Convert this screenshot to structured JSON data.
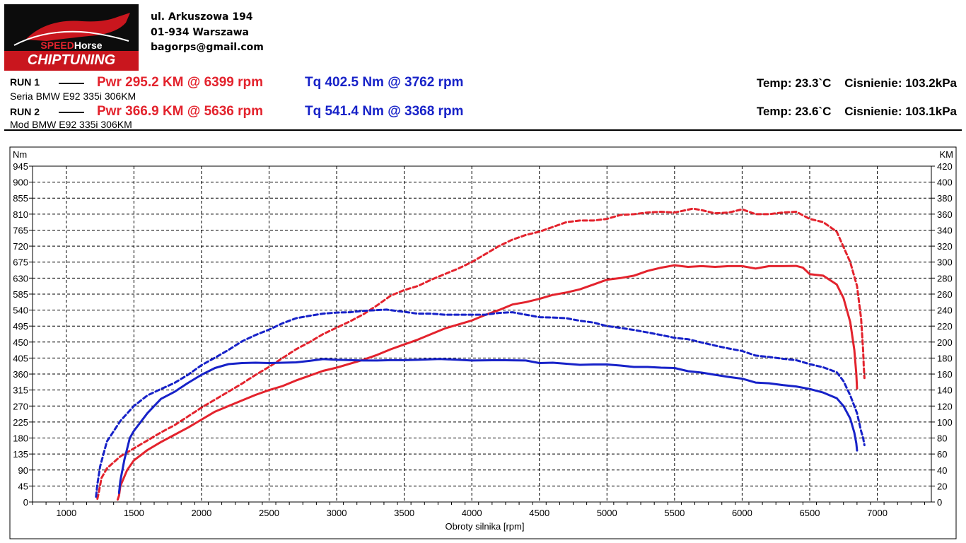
{
  "brand": {
    "logo_word_1": "SPEED",
    "logo_word_2": "Horse",
    "logo_sub": "CHIPTUNING"
  },
  "address": {
    "street": "ul. Arkuszowa 194",
    "city": "01-934 Warszawa",
    "email": "bagorps@gmail.com"
  },
  "runs": [
    {
      "label": "RUN 1",
      "pwr": "Pwr  295.2 KM @ 6399 rpm",
      "tq": "Tq 402.5 Nm @ 3762 rpm",
      "desc": "Seria BMW E92 335i 306KM",
      "env": "Temp: 23.3`C    Cisnienie: 103.2kPa"
    },
    {
      "label": "RUN 2",
      "pwr": "Pwr  366.9 KM @ 5636 rpm",
      "tq": "Tq 541.4 Nm @ 3368 rpm",
      "desc": "Mod BMW E92 335i 306KM",
      "env": "Temp: 23.6`C    Cisnienie: 103.1kPa"
    }
  ],
  "colors": {
    "power": "#e3232d",
    "torque": "#1722c8",
    "grid": "#000000"
  },
  "chart_data": {
    "type": "line",
    "title": "",
    "xlabel": "Obroty silnika [rpm]",
    "ylabel_left": "Nm",
    "ylabel_right": "KM",
    "xlim": [
      750,
      7400
    ],
    "ylim_left": [
      0,
      945
    ],
    "ylim_right": [
      0,
      420
    ],
    "x_ticks": [
      1000,
      1500,
      2000,
      2500,
      3000,
      3500,
      4000,
      4500,
      5000,
      5500,
      6000,
      6500,
      7000
    ],
    "y_ticks_left": [
      0,
      45,
      90,
      135,
      180,
      225,
      270,
      315,
      360,
      405,
      450,
      495,
      540,
      585,
      630,
      675,
      720,
      765,
      810,
      855,
      900,
      945
    ],
    "y_ticks_right": [
      0,
      20,
      40,
      60,
      80,
      100,
      120,
      140,
      160,
      180,
      200,
      220,
      240,
      260,
      280,
      300,
      320,
      340,
      360,
      380,
      400,
      420
    ],
    "grid": true,
    "series": [
      {
        "run": "RUN 1",
        "kind": "power",
        "axis": "right",
        "style": "solid",
        "points": [
          [
            1380,
            3
          ],
          [
            1390,
            8
          ],
          [
            1400,
            20
          ],
          [
            1450,
            40
          ],
          [
            1500,
            52
          ],
          [
            1600,
            65
          ],
          [
            1700,
            75
          ],
          [
            1800,
            84
          ],
          [
            1900,
            93
          ],
          [
            2000,
            103
          ],
          [
            2100,
            113
          ],
          [
            2200,
            120
          ],
          [
            2300,
            127
          ],
          [
            2400,
            134
          ],
          [
            2500,
            140
          ],
          [
            2600,
            145
          ],
          [
            2700,
            152
          ],
          [
            2800,
            158
          ],
          [
            2900,
            164
          ],
          [
            3000,
            168
          ],
          [
            3100,
            173
          ],
          [
            3200,
            178
          ],
          [
            3300,
            184
          ],
          [
            3400,
            191
          ],
          [
            3500,
            197
          ],
          [
            3600,
            203
          ],
          [
            3700,
            210
          ],
          [
            3800,
            217
          ],
          [
            3900,
            222
          ],
          [
            4000,
            227
          ],
          [
            4100,
            234
          ],
          [
            4200,
            240
          ],
          [
            4300,
            247
          ],
          [
            4400,
            250
          ],
          [
            4500,
            254
          ],
          [
            4600,
            259
          ],
          [
            4700,
            262
          ],
          [
            4800,
            266
          ],
          [
            4900,
            272
          ],
          [
            5000,
            278
          ],
          [
            5100,
            280
          ],
          [
            5200,
            283
          ],
          [
            5300,
            289
          ],
          [
            5400,
            293
          ],
          [
            5500,
            296
          ],
          [
            5600,
            294
          ],
          [
            5700,
            295
          ],
          [
            5800,
            294
          ],
          [
            5900,
            295
          ],
          [
            6000,
            295
          ],
          [
            6100,
            292
          ],
          [
            6200,
            295
          ],
          [
            6300,
            295
          ],
          [
            6399,
            295.2
          ],
          [
            6450,
            293
          ],
          [
            6500,
            285
          ],
          [
            6600,
            283
          ],
          [
            6700,
            272
          ],
          [
            6750,
            255
          ],
          [
            6800,
            225
          ],
          [
            6830,
            190
          ],
          [
            6845,
            160
          ],
          [
            6850,
            142
          ]
        ]
      },
      {
        "run": "RUN 2",
        "kind": "power",
        "axis": "right",
        "style": "dashed",
        "points": [
          [
            1230,
            4
          ],
          [
            1240,
            12
          ],
          [
            1260,
            30
          ],
          [
            1300,
            42
          ],
          [
            1400,
            57
          ],
          [
            1500,
            67
          ],
          [
            1600,
            77
          ],
          [
            1700,
            87
          ],
          [
            1800,
            96
          ],
          [
            1900,
            107
          ],
          [
            2000,
            118
          ],
          [
            2100,
            128
          ],
          [
            2200,
            138
          ],
          [
            2300,
            148
          ],
          [
            2400,
            159
          ],
          [
            2500,
            169
          ],
          [
            2600,
            180
          ],
          [
            2700,
            191
          ],
          [
            2800,
            200
          ],
          [
            2900,
            210
          ],
          [
            3000,
            218
          ],
          [
            3100,
            226
          ],
          [
            3200,
            235
          ],
          [
            3300,
            246
          ],
          [
            3400,
            258
          ],
          [
            3500,
            265
          ],
          [
            3600,
            270
          ],
          [
            3700,
            278
          ],
          [
            3800,
            285
          ],
          [
            3900,
            292
          ],
          [
            4000,
            300
          ],
          [
            4100,
            310
          ],
          [
            4200,
            320
          ],
          [
            4300,
            328
          ],
          [
            4400,
            334
          ],
          [
            4500,
            338
          ],
          [
            4600,
            344
          ],
          [
            4700,
            350
          ],
          [
            4800,
            352
          ],
          [
            4900,
            352
          ],
          [
            5000,
            354
          ],
          [
            5100,
            359
          ],
          [
            5200,
            360
          ],
          [
            5300,
            362
          ],
          [
            5400,
            363
          ],
          [
            5500,
            362
          ],
          [
            5636,
            366.9
          ],
          [
            5700,
            365
          ],
          [
            5800,
            361
          ],
          [
            5900,
            362
          ],
          [
            6000,
            366
          ],
          [
            6100,
            360
          ],
          [
            6200,
            360
          ],
          [
            6300,
            362
          ],
          [
            6400,
            363
          ],
          [
            6500,
            354
          ],
          [
            6600,
            350
          ],
          [
            6700,
            338
          ],
          [
            6800,
            300
          ],
          [
            6850,
            270
          ],
          [
            6880,
            230
          ],
          [
            6895,
            190
          ],
          [
            6900,
            170
          ],
          [
            6905,
            155
          ]
        ]
      },
      {
        "run": "RUN 1",
        "kind": "torque",
        "axis": "left",
        "style": "solid",
        "points": [
          [
            1390,
            25
          ],
          [
            1400,
            60
          ],
          [
            1430,
            120
          ],
          [
            1470,
            180
          ],
          [
            1500,
            200
          ],
          [
            1600,
            250
          ],
          [
            1700,
            290
          ],
          [
            1800,
            310
          ],
          [
            1900,
            335
          ],
          [
            2000,
            358
          ],
          [
            2100,
            377
          ],
          [
            2200,
            388
          ],
          [
            2300,
            391
          ],
          [
            2400,
            392
          ],
          [
            2500,
            391
          ],
          [
            2600,
            392
          ],
          [
            2700,
            393
          ],
          [
            2800,
            397
          ],
          [
            2900,
            402
          ],
          [
            3000,
            400
          ],
          [
            3100,
            399
          ],
          [
            3200,
            398
          ],
          [
            3300,
            398
          ],
          [
            3400,
            399
          ],
          [
            3500,
            399
          ],
          [
            3600,
            400
          ],
          [
            3762,
            402.5
          ],
          [
            3900,
            400
          ],
          [
            4000,
            398
          ],
          [
            4200,
            399
          ],
          [
            4400,
            398
          ],
          [
            4500,
            391
          ],
          [
            4600,
            392
          ],
          [
            4700,
            389
          ],
          [
            4800,
            386
          ],
          [
            4900,
            387
          ],
          [
            5000,
            387
          ],
          [
            5100,
            384
          ],
          [
            5200,
            380
          ],
          [
            5300,
            380
          ],
          [
            5400,
            378
          ],
          [
            5500,
            377
          ],
          [
            5600,
            368
          ],
          [
            5700,
            364
          ],
          [
            5800,
            358
          ],
          [
            5900,
            352
          ],
          [
            6000,
            347
          ],
          [
            6100,
            336
          ],
          [
            6200,
            334
          ],
          [
            6300,
            329
          ],
          [
            6400,
            325
          ],
          [
            6500,
            318
          ],
          [
            6600,
            308
          ],
          [
            6700,
            292
          ],
          [
            6750,
            270
          ],
          [
            6800,
            235
          ],
          [
            6830,
            195
          ],
          [
            6845,
            165
          ],
          [
            6850,
            145
          ]
        ]
      },
      {
        "run": "RUN 2",
        "kind": "torque",
        "axis": "left",
        "style": "dashed",
        "points": [
          [
            1220,
            15
          ],
          [
            1230,
            50
          ],
          [
            1250,
            100
          ],
          [
            1300,
            170
          ],
          [
            1400,
            228
          ],
          [
            1500,
            270
          ],
          [
            1600,
            300
          ],
          [
            1700,
            318
          ],
          [
            1800,
            335
          ],
          [
            1900,
            358
          ],
          [
            2000,
            385
          ],
          [
            2100,
            406
          ],
          [
            2200,
            428
          ],
          [
            2300,
            452
          ],
          [
            2400,
            470
          ],
          [
            2500,
            485
          ],
          [
            2600,
            503
          ],
          [
            2700,
            517
          ],
          [
            2800,
            524
          ],
          [
            2900,
            530
          ],
          [
            3000,
            533
          ],
          [
            3100,
            534
          ],
          [
            3200,
            538
          ],
          [
            3368,
            541.4
          ],
          [
            3500,
            535
          ],
          [
            3600,
            530
          ],
          [
            3700,
            530
          ],
          [
            3800,
            527
          ],
          [
            3900,
            527
          ],
          [
            4000,
            527
          ],
          [
            4100,
            527
          ],
          [
            4200,
            532
          ],
          [
            4300,
            534
          ],
          [
            4400,
            527
          ],
          [
            4500,
            520
          ],
          [
            4600,
            519
          ],
          [
            4700,
            517
          ],
          [
            4800,
            510
          ],
          [
            4900,
            505
          ],
          [
            5000,
            495
          ],
          [
            5100,
            490
          ],
          [
            5200,
            484
          ],
          [
            5300,
            477
          ],
          [
            5400,
            470
          ],
          [
            5500,
            462
          ],
          [
            5600,
            458
          ],
          [
            5700,
            449
          ],
          [
            5800,
            440
          ],
          [
            5900,
            432
          ],
          [
            6000,
            425
          ],
          [
            6100,
            412
          ],
          [
            6200,
            408
          ],
          [
            6300,
            403
          ],
          [
            6400,
            399
          ],
          [
            6500,
            388
          ],
          [
            6600,
            379
          ],
          [
            6700,
            365
          ],
          [
            6750,
            340
          ],
          [
            6800,
            300
          ],
          [
            6850,
            250
          ],
          [
            6880,
            200
          ],
          [
            6895,
            180
          ],
          [
            6905,
            160
          ]
        ]
      }
    ]
  }
}
